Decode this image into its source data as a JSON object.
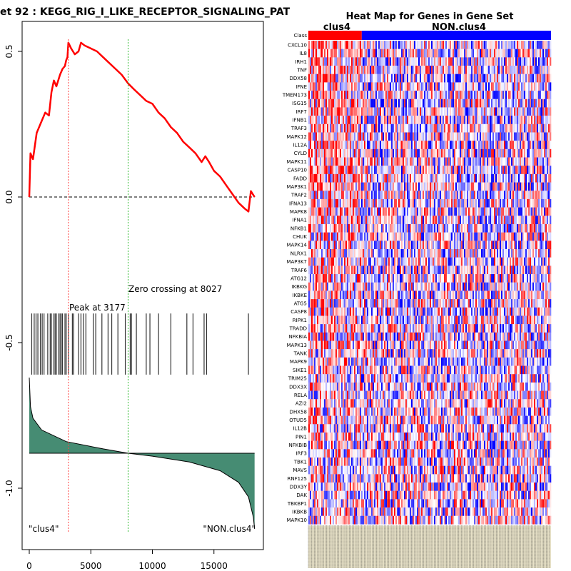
{
  "chart_data": [
    {
      "type": "line",
      "title": "et  92 : KEGG_RIG_I_LIKE_RECEPTOR_SIGNALING_PAT",
      "xlabel": "",
      "ylabel": "",
      "xlim": [
        0,
        18500
      ],
      "ylim": [
        -1.2,
        0.6
      ],
      "x_ticks": [
        0,
        5000,
        10000,
        15000
      ],
      "y_ticks": [
        -1.0,
        -0.5,
        0.0,
        0.5
      ],
      "x_tick_labels": [
        "0",
        "5000",
        "10000",
        "15000"
      ],
      "y_tick_labels": [
        "-1.0",
        "-0.5",
        "0.0",
        "0.5"
      ],
      "running_es": {
        "name": "Running enrichment score",
        "color": "#ff0000",
        "x": [
          0,
          50,
          100,
          300,
          600,
          900,
          1300,
          1600,
          1800,
          2000,
          2200,
          2500,
          2700,
          2900,
          3000,
          3100,
          3177,
          3400,
          3700,
          4000,
          4200,
          4500,
          5000,
          5500,
          6000,
          6500,
          7000,
          7500,
          8027,
          8500,
          9000,
          9500,
          10000,
          10500,
          11000,
          11500,
          12000,
          12500,
          13000,
          13500,
          14000,
          14300,
          14600,
          15000,
          15500,
          16000,
          16500,
          17000,
          17500,
          17800,
          18000,
          18300
        ],
        "values": [
          0.0,
          0.08,
          0.15,
          0.13,
          0.22,
          0.25,
          0.29,
          0.28,
          0.36,
          0.4,
          0.38,
          0.42,
          0.44,
          0.45,
          0.47,
          0.48,
          0.53,
          0.51,
          0.49,
          0.5,
          0.53,
          0.52,
          0.51,
          0.5,
          0.48,
          0.46,
          0.44,
          0.42,
          0.39,
          0.37,
          0.35,
          0.33,
          0.32,
          0.29,
          0.27,
          0.24,
          0.22,
          0.19,
          0.17,
          0.15,
          0.12,
          0.14,
          0.12,
          0.09,
          0.07,
          0.04,
          0.01,
          -0.02,
          -0.04,
          -0.05,
          0.02,
          0.0
        ]
      },
      "baseline": {
        "y": 0.0,
        "style": "dashed",
        "color": "#000000"
      },
      "hit_positions": [
        200,
        400,
        550,
        700,
        900,
        1050,
        1200,
        1500,
        1700,
        1800,
        2000,
        2100,
        2200,
        2400,
        2500,
        2600,
        2700,
        2900,
        3000,
        3177,
        3500,
        3600,
        4000,
        4200,
        4400,
        4600,
        5200,
        5400,
        5900,
        6400,
        6700,
        7200,
        7800,
        8200,
        8300,
        8700,
        9500,
        9800,
        10500,
        11500,
        12800,
        13300,
        14200,
        14400,
        17800
      ],
      "ranked_metric": {
        "fill_color": "#468c73",
        "description": "Ranked list correlation profile (high to low)",
        "points": [
          {
            "x": 0,
            "y": -0.62
          },
          {
            "x": 100,
            "y": -0.72
          },
          {
            "x": 300,
            "y": -0.76
          },
          {
            "x": 1000,
            "y": -0.8
          },
          {
            "x": 3000,
            "y": -0.84
          },
          {
            "x": 6000,
            "y": -0.865
          },
          {
            "x": 8027,
            "y": -0.88
          },
          {
            "x": 10000,
            "y": -0.89
          },
          {
            "x": 13000,
            "y": -0.91
          },
          {
            "x": 15500,
            "y": -0.94
          },
          {
            "x": 17000,
            "y": -0.98
          },
          {
            "x": 17800,
            "y": -1.03
          },
          {
            "x": 18200,
            "y": -1.1
          },
          {
            "x": 18300,
            "y": -1.14
          }
        ],
        "zero_level": -0.88
      },
      "vlines": [
        {
          "x": 3177,
          "color": "#ff4444",
          "style": "dotted"
        },
        {
          "x": 8027,
          "color": "#33bb33",
          "style": "dotted"
        }
      ],
      "annotations": {
        "peak": "Peak at 3177",
        "zero_crossing": "Zero crossing at 8027",
        "left_class": "\"clus4\"",
        "right_class": "\"NON.clus4\""
      }
    },
    {
      "type": "heatmap",
      "title": "Heat Map for Genes in Gene Set",
      "class_row_label": "Class",
      "class_groups": [
        {
          "name": "clus4",
          "color": "#ff0000",
          "fraction": 0.22
        },
        {
          "name": "NON.clus4",
          "color": "#0000ff",
          "fraction": 0.78
        }
      ],
      "color_scale": {
        "low": "#0000ff",
        "mid": "#ffffff",
        "high": "#ff0000"
      },
      "genes": [
        "CXCL10",
        "IL8",
        "IRH1",
        "TNF",
        "DDX58",
        "IFNE",
        "TMEM173",
        "ISG15",
        "IRF7",
        "IFNB1",
        "TRAF3",
        "MAPK12",
        "IL12A",
        "CYLD",
        "MAPK11",
        "CASP10",
        "FADD",
        "MAP3K1",
        "TRAF2",
        "IFNA13",
        "MAPK8",
        "IFNA1",
        "NFKB1",
        "CHUK",
        "MAPK14",
        "NLRX1",
        "MAP3K7",
        "TRAF6",
        "ATG12",
        "IKBKG",
        "IKBKE",
        "ATG5",
        "CASP8",
        "RIPK1",
        "TRADD",
        "NFKBIA",
        "MAPK13",
        "TANK",
        "MAPK9",
        "SIKE1",
        "TRIM25",
        "DDX3X",
        "RELA",
        "AZI2",
        "DHX58",
        "OTUD5",
        "IL12B",
        "PIN1",
        "NFKBIB",
        "IRF3",
        "TBK1",
        "MAVS",
        "RNF125",
        "DDX3Y",
        "DAK",
        "TBKBP1",
        "IKBKB",
        "MAPK10"
      ]
    }
  ]
}
